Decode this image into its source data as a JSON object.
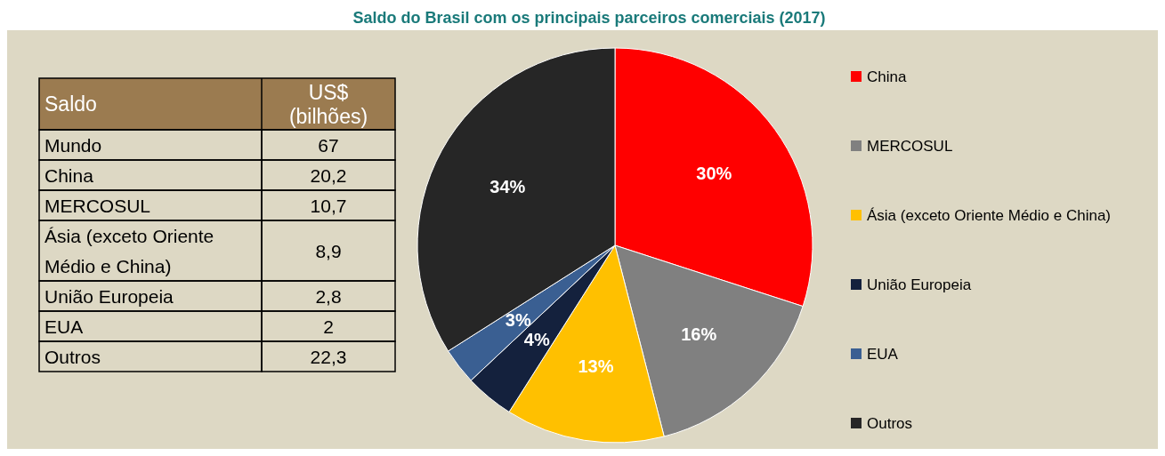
{
  "chart_data": [
    {
      "type": "pie",
      "title": "Saldo do Brasil com os principais parceiros comerciais (2017)",
      "categories": [
        "China",
        "MERCOSUL",
        "Ásia (exceto Oriente Médio e China)",
        "União Europeia",
        "EUA",
        "Outros"
      ],
      "values": [
        30,
        16,
        13,
        4,
        3,
        34
      ],
      "colors": [
        "#ff0000",
        "#808080",
        "#ffc000",
        "#14213d",
        "#3a5f92",
        "#262626"
      ],
      "value_labels": [
        "30%",
        "16%",
        "13%",
        "4%",
        "3%",
        "34%"
      ],
      "legend": "right"
    },
    {
      "type": "other",
      "xlabel": "Saldo",
      "ylabel": "US$ (bilhões)",
      "categories": [
        "Mundo",
        "China",
        "MERCOSUL",
        "Ásia (exceto Oriente Médio e China)",
        "União Europeia",
        "EUA",
        "Outros"
      ],
      "value_labels": [
        "67",
        "20,2",
        "10,7",
        "8,9",
        "2,8",
        "2",
        "22,3"
      ]
    }
  ]
}
